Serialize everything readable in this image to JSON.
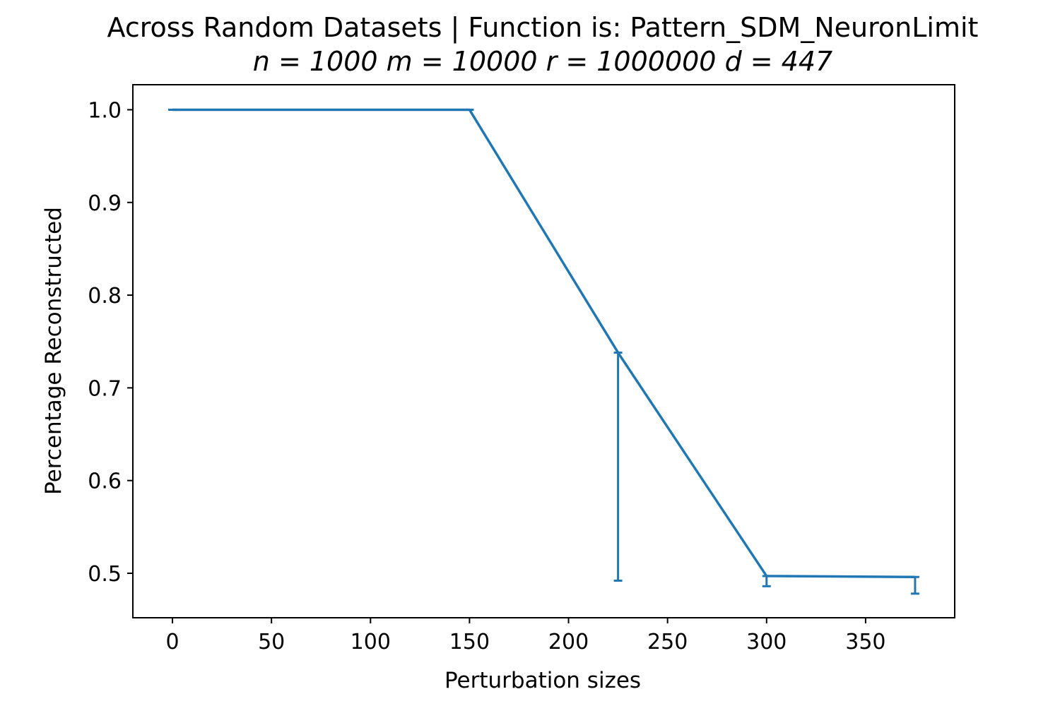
{
  "chart_data": {
    "type": "line",
    "title": "Across Random Datasets | Function is: Pattern_SDM_NeuronLimit",
    "subtitle": "n = 1000 m = 10000 r = 1000000 d = 447",
    "xlabel": "Perturbation sizes",
    "ylabel": "Percentage Reconstructed",
    "xlim": [
      -20,
      395
    ],
    "ylim": [
      0.452,
      1.027
    ],
    "x_ticks": [
      0,
      50,
      100,
      150,
      200,
      250,
      300,
      350
    ],
    "x_tick_labels": [
      "0",
      "50",
      "100",
      "150",
      "200",
      "250",
      "300",
      "350"
    ],
    "y_ticks": [
      0.5,
      0.6,
      0.7,
      0.8,
      0.9,
      1.0
    ],
    "y_tick_labels": [
      "0.5",
      "0.6",
      "0.7",
      "0.8",
      "0.9",
      "1.0"
    ],
    "grid": false,
    "legend": false,
    "series": [
      {
        "color": "#1f77b4",
        "points": [
          {
            "x": 0,
            "y": 1.0,
            "err_low": 1.0,
            "err_high": 1.0
          },
          {
            "x": 150,
            "y": 1.0,
            "err_low": 1.0,
            "err_high": 1.0
          },
          {
            "x": 225,
            "y": 0.738,
            "err_low": 0.492,
            "err_high": 0.738
          },
          {
            "x": 300,
            "y": 0.497,
            "err_low": 0.486,
            "err_high": 0.497
          },
          {
            "x": 375,
            "y": 0.496,
            "err_low": 0.478,
            "err_high": 0.496
          }
        ]
      }
    ]
  }
}
